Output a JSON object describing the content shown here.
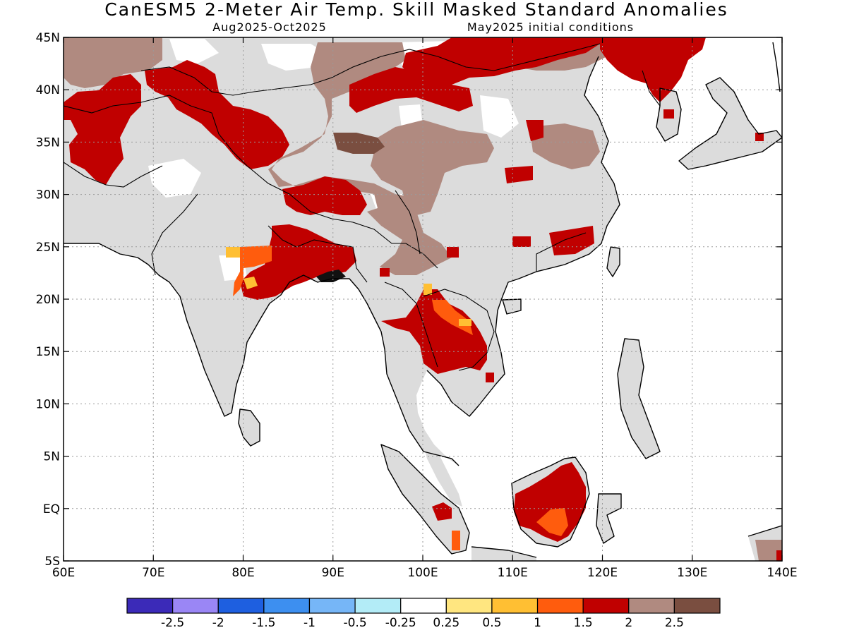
{
  "title": "CanESM5 2-Meter Air Temp. Skill Masked Standard Anomalies",
  "subtitle_period": "Aug2025-Oct2025",
  "subtitle_init": "May2025 initial conditions",
  "axes": {
    "lon_ticks": [
      "60E",
      "70E",
      "80E",
      "90E",
      "100E",
      "110E",
      "120E",
      "130E",
      "140E"
    ],
    "lat_ticks": [
      "45N",
      "40N",
      "35N",
      "30N",
      "25N",
      "20N",
      "15N",
      "10N",
      "5N",
      "EQ",
      "5S"
    ],
    "lon_range": [
      60,
      140
    ],
    "lat_range": [
      -5,
      45
    ],
    "gridlines": "dotted"
  },
  "colorbar": {
    "labels": [
      "-2.5",
      "-2",
      "-1.5",
      "-1",
      "-0.5",
      "-0.25",
      "0.25",
      "0.5",
      "1",
      "1.5",
      "2",
      "2.5"
    ],
    "colors": [
      "#3b2ab8",
      "#9a86f5",
      "#1e5fe0",
      "#3d8ff0",
      "#76b6f7",
      "#b3ecf7",
      "#ffffff",
      "#ffe680",
      "#ffbf33",
      "#ff5c0d",
      "#c00000",
      "#b08a80",
      "#7a4e40"
    ]
  },
  "colors": {
    "land_no_skill": "#dcdcdc",
    "coastline": "#000000"
  },
  "regions": [
    {
      "name": "central-asia-brown",
      "fill": "#b08a80"
    },
    {
      "name": "tibet-brown",
      "fill": "#b08a80"
    },
    {
      "name": "north-china-brown",
      "fill": "#b08a80"
    },
    {
      "name": "west-central-asia-red",
      "fill": "#c00000"
    },
    {
      "name": "kashmir-red",
      "fill": "#c00000"
    },
    {
      "name": "mongolia-red",
      "fill": "#c00000"
    },
    {
      "name": "nw-china-red",
      "fill": "#c00000"
    },
    {
      "name": "manchuria-red",
      "fill": "#c00000"
    },
    {
      "name": "tibet-red",
      "fill": "#c00000"
    },
    {
      "name": "bengal-red",
      "fill": "#c00000"
    },
    {
      "name": "indochina-red",
      "fill": "#c00000"
    },
    {
      "name": "borneo-red",
      "fill": "#c00000"
    },
    {
      "name": "sumatra-red",
      "fill": "#c00000"
    },
    {
      "name": "india-orange",
      "fill": "#ff5c0d"
    },
    {
      "name": "laos-orange",
      "fill": "#ff5c0d"
    },
    {
      "name": "borneo-orange",
      "fill": "#ff5c0d"
    },
    {
      "name": "tibet-darkbrown",
      "fill": "#7a4e40"
    }
  ]
}
